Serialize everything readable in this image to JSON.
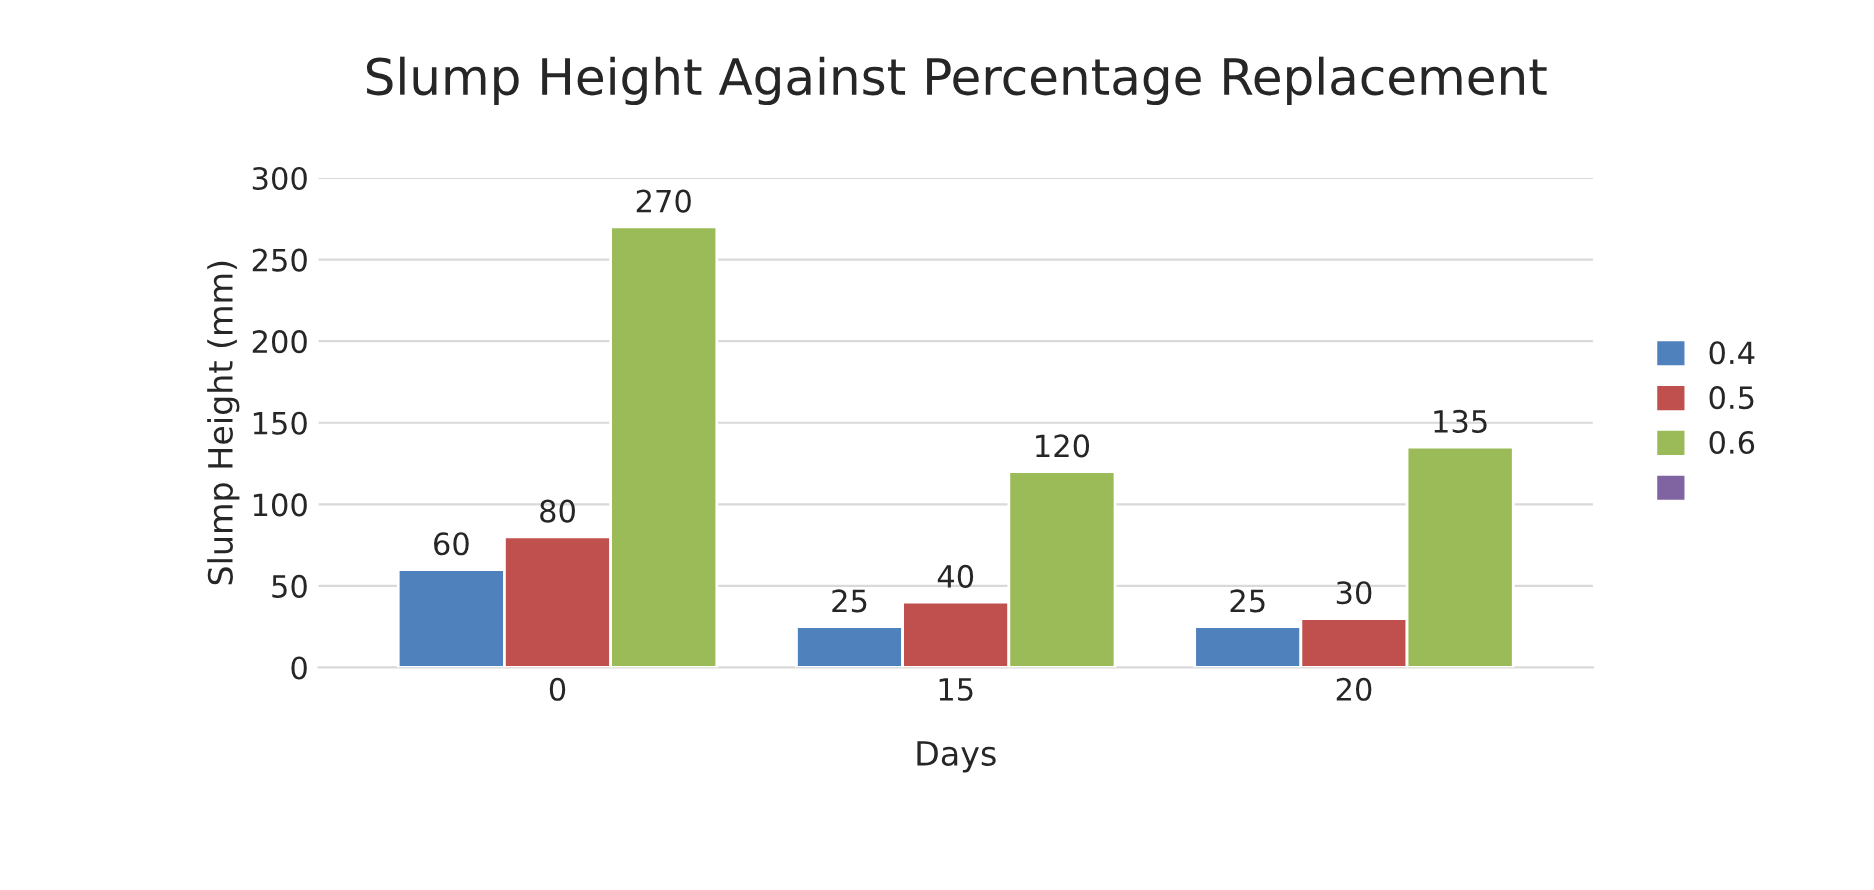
{
  "chart_data": {
    "type": "bar",
    "title": "Slump Height Against Percentage Replacement",
    "xlabel": "Days",
    "ylabel": "Slump Height (mm)",
    "categories": [
      "0",
      "15",
      "20"
    ],
    "series": [
      {
        "name": "0.4",
        "color": "#4f81bd",
        "values": [
          60,
          25,
          25
        ]
      },
      {
        "name": "0.5",
        "color": "#c0504d",
        "values": [
          80,
          40,
          30
        ]
      },
      {
        "name": "0.6",
        "color": "#9bbb59",
        "values": [
          270,
          120,
          135
        ]
      },
      {
        "color": "#8064a2",
        "values": [
          null,
          null,
          null
        ]
      }
    ],
    "ylim": [
      0,
      300
    ],
    "yticks": [
      0,
      50,
      100,
      150,
      200,
      250,
      300
    ],
    "grid": "y",
    "legend": "right",
    "data_labels": true
  }
}
